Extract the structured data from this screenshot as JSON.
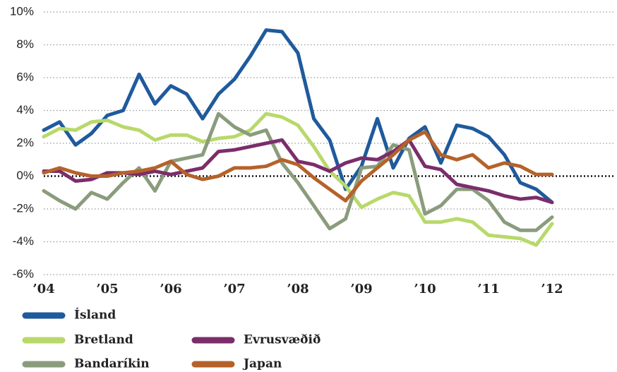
{
  "chart_data": {
    "type": "line",
    "x": [
      2004,
      2004.25,
      2004.5,
      2004.75,
      2005,
      2005.25,
      2005.5,
      2005.75,
      2006,
      2006.25,
      2006.5,
      2006.75,
      2007,
      2007.25,
      2007.5,
      2007.75,
      2008,
      2008.25,
      2008.5,
      2008.75,
      2009,
      2009.25,
      2009.5,
      2009.75,
      2010,
      2010.25,
      2010.5,
      2010.75,
      2011,
      2011.25,
      2011.5,
      2011.75,
      2012
    ],
    "series": [
      {
        "name": "Ísland",
        "color": "#1f5a9c",
        "values": [
          2.8,
          3.3,
          1.9,
          2.6,
          3.7,
          4.0,
          6.2,
          4.4,
          5.5,
          5.0,
          3.5,
          5.0,
          5.9,
          7.3,
          8.9,
          8.8,
          7.5,
          3.5,
          2.2,
          -0.8,
          0.6,
          3.5,
          0.5,
          2.3,
          3.0,
          0.8,
          3.1,
          2.9,
          2.4,
          1.3,
          -0.4,
          -0.8,
          -1.6
        ]
      },
      {
        "name": "Bretland",
        "color": "#b8d96a",
        "values": [
          2.4,
          2.9,
          2.8,
          3.3,
          3.4,
          3.0,
          2.8,
          2.2,
          2.5,
          2.5,
          2.1,
          2.3,
          2.4,
          2.8,
          3.8,
          3.6,
          3.1,
          1.8,
          0.3,
          -0.6,
          -1.9,
          -1.4,
          -1.0,
          -1.2,
          -2.8,
          -2.8,
          -2.6,
          -2.8,
          -3.6,
          -3.7,
          -3.8,
          -4.2,
          -2.9
        ]
      },
      {
        "name": "Bandaríkin",
        "color": "#8a9c7c",
        "values": [
          -0.9,
          -1.5,
          -2.0,
          -1.0,
          -1.4,
          -0.4,
          0.5,
          -0.9,
          0.9,
          1.1,
          1.3,
          3.8,
          3.0,
          2.5,
          2.8,
          0.8,
          -0.4,
          -1.8,
          -3.2,
          -2.6,
          0.5,
          0.6,
          1.9,
          1.6,
          -2.3,
          -1.8,
          -0.8,
          -0.8,
          -1.5,
          -2.8,
          -3.3,
          -3.3,
          -2.5
        ]
      },
      {
        "name": "Evrusvæðið",
        "color": "#7b2d6b",
        "values": [
          0.3,
          0.3,
          -0.3,
          -0.2,
          0.2,
          0.2,
          0.1,
          0.3,
          0.1,
          0.3,
          0.5,
          1.5,
          1.6,
          1.8,
          2.0,
          2.2,
          0.9,
          0.7,
          0.3,
          0.8,
          1.1,
          1.0,
          1.5,
          2.2,
          0.6,
          0.4,
          -0.5,
          -0.7,
          -0.9,
          -1.2,
          -1.4,
          -1.3,
          -1.6
        ]
      },
      {
        "name": "Japan",
        "color": "#b5622a",
        "values": [
          0.2,
          0.5,
          0.2,
          0.0,
          0.0,
          0.2,
          0.3,
          0.5,
          0.9,
          0.1,
          -0.2,
          0.0,
          0.5,
          0.5,
          0.6,
          1.0,
          0.7,
          -0.1,
          -0.8,
          -1.5,
          -0.3,
          0.5,
          1.3,
          2.2,
          2.7,
          1.3,
          1.0,
          1.3,
          0.5,
          0.8,
          0.6,
          0.1,
          0.1
        ]
      }
    ],
    "xlim": [
      2004,
      2013
    ],
    "xticks": [
      {
        "value": 2004,
        "label": "’04"
      },
      {
        "value": 2005,
        "label": "’05"
      },
      {
        "value": 2006,
        "label": "’06"
      },
      {
        "value": 2007,
        "label": "’07"
      },
      {
        "value": 2008,
        "label": "’08"
      },
      {
        "value": 2009,
        "label": "’09"
      },
      {
        "value": 2010,
        "label": "’10"
      },
      {
        "value": 2011,
        "label": "’11"
      },
      {
        "value": 2012,
        "label": "’12"
      }
    ],
    "ylim": [
      -6,
      10
    ],
    "yticks": [
      {
        "value": -6,
        "label": "-6%"
      },
      {
        "value": -4,
        "label": "-4%"
      },
      {
        "value": -2,
        "label": "-2%"
      },
      {
        "value": 0,
        "label": "0%"
      },
      {
        "value": 2,
        "label": "2%"
      },
      {
        "value": 4,
        "label": "4%"
      },
      {
        "value": 6,
        "label": "6%"
      },
      {
        "value": 8,
        "label": "8%"
      },
      {
        "value": 10,
        "label": "10%"
      }
    ],
    "grid": true
  }
}
